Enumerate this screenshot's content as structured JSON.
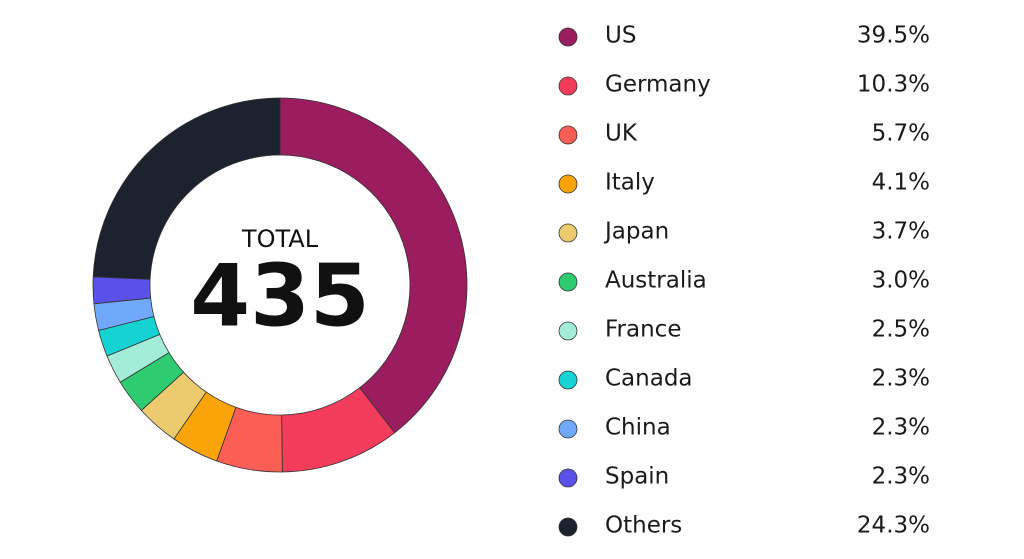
{
  "chart_data": {
    "type": "donut",
    "center_label": "TOTAL",
    "total": 435,
    "categories": [
      "US",
      "Germany",
      "UK",
      "Italy",
      "Japan",
      "Australia",
      "France",
      "Canada",
      "China",
      "Spain",
      "Others"
    ],
    "values": [
      39.5,
      10.3,
      5.7,
      4.1,
      3.7,
      3.0,
      2.5,
      2.3,
      2.3,
      2.3,
      24.3
    ],
    "value_labels": [
      "39.5%",
      "10.3%",
      "5.7%",
      "4.1%",
      "3.7%",
      "3.0%",
      "2.5%",
      "2.3%",
      "2.3%",
      "2.3%",
      "24.3%"
    ],
    "colors": [
      "#9b1c5f",
      "#f43c5c",
      "#fb5e55",
      "#fba40a",
      "#ebcb6e",
      "#2ecc71",
      "#a2ecd8",
      "#16d3d3",
      "#70a8fb",
      "#5a50ea",
      "#1c222e"
    ]
  }
}
